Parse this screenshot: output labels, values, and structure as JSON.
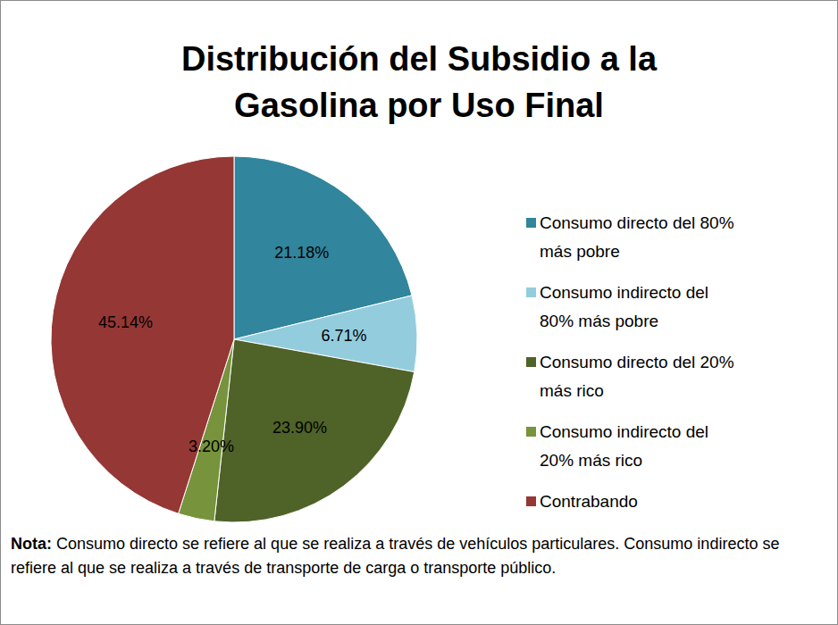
{
  "chart_data": {
    "type": "pie",
    "title": "Distribución del Subsidio a la Gasolina por Uso Final",
    "categories": [
      "Consumo directo del 80% más pobre",
      "Consumo indirecto del 80% más pobre",
      "Consumo directo del 20% más rico",
      "Consumo indirecto del 20% más rico",
      "Contrabando"
    ],
    "values": [
      21.18,
      6.71,
      23.9,
      3.2,
      45.14
    ],
    "value_labels": [
      "21.18%",
      "6.71%",
      "23.90%",
      "3.20%",
      "45.14%"
    ],
    "colors": [
      "#31859c",
      "#93cddd",
      "#4f6228",
      "#77933c",
      "#953735"
    ],
    "data_labels": true,
    "legend": "right",
    "note": {
      "label": "Nota:",
      "text": "Consumo directo se refiere al que se realiza a través de vehículos particulares. Consumo indirecto se refiere al que se realiza a través de transporte de carga o transporte público."
    }
  }
}
